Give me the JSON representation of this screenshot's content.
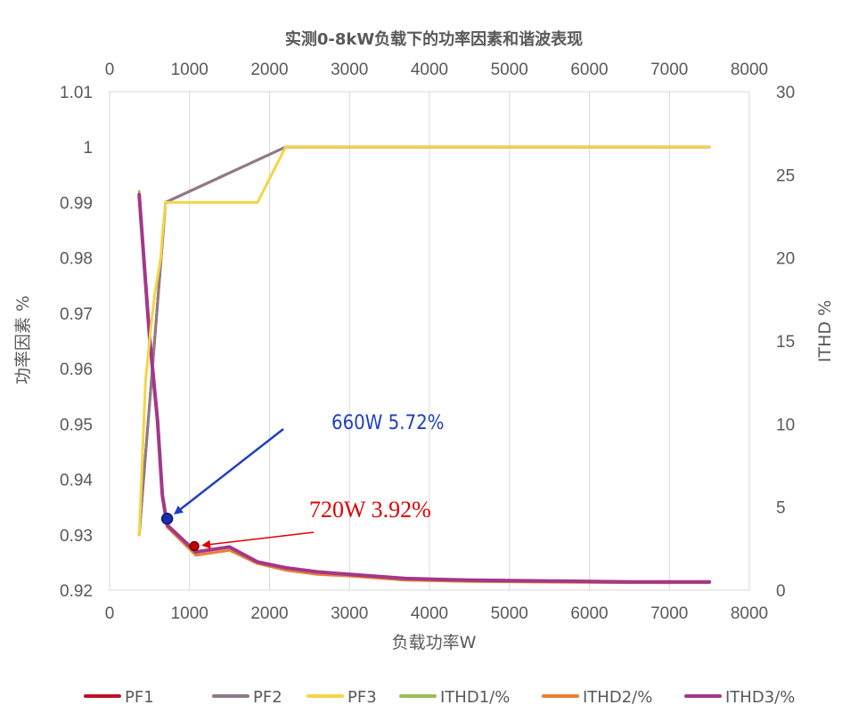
{
  "chart_data": {
    "type": "line",
    "title": "实测0-8kW负载下的功率因素和谐波表现",
    "xlabel": "负载功率W",
    "ylabel_left": "功率因素 %",
    "ylabel_right": "ITHD %",
    "x_range": [
      0,
      8000
    ],
    "x_ticks": [
      "0",
      "1000",
      "2000",
      "3000",
      "4000",
      "5000",
      "6000",
      "7000",
      "8000"
    ],
    "y_left_range": [
      0.92,
      1.01
    ],
    "y_left_ticks": [
      "0.92",
      "0.93",
      "0.94",
      "0.95",
      "0.96",
      "0.97",
      "0.98",
      "0.99",
      "1",
      "1.01"
    ],
    "y_right_range": [
      0,
      30
    ],
    "y_right_ticks": [
      "0",
      "5",
      "10",
      "15",
      "20",
      "25",
      "30"
    ],
    "grid": "vertical",
    "legend_position": "bottom",
    "series": [
      {
        "name": "PF1",
        "axis": "left",
        "color": "#c0102a",
        "x": [
          370,
          700,
          2200,
          7500
        ],
        "y": [
          0.93,
          0.99,
          1.0,
          1.0
        ]
      },
      {
        "name": "PF2",
        "axis": "left",
        "color": "#8c7b88",
        "x": [
          370,
          700,
          2200,
          7500
        ],
        "y": [
          0.93,
          0.99,
          1.0,
          1.0
        ]
      },
      {
        "name": "PF3",
        "axis": "left",
        "color": "#f5d547",
        "x": [
          370,
          450,
          520,
          570,
          640,
          660,
          700,
          1000,
          1500,
          1850,
          2200,
          3000,
          4000,
          5000,
          6000,
          7000,
          7500
        ],
        "y": [
          0.93,
          0.958,
          0.968,
          0.974,
          0.98,
          0.984,
          0.99,
          0.99,
          0.99,
          0.99,
          1.0,
          1.0,
          1.0,
          1.0,
          1.0,
          1.0,
          1.0
        ]
      },
      {
        "name": "ITHD1/%",
        "axis": "right",
        "color": "#9bbb59",
        "x": [
          370,
          500,
          600,
          660,
          720,
          1080,
          1500,
          1850,
          2200,
          2600,
          3000,
          3700,
          4500,
          5500,
          6500,
          7500
        ],
        "y": [
          24.0,
          15.2,
          10.2,
          5.72,
          3.92,
          2.3,
          2.6,
          1.7,
          1.35,
          1.1,
          0.95,
          0.7,
          0.6,
          0.55,
          0.5,
          0.5
        ]
      },
      {
        "name": "ITHD2/%",
        "axis": "right",
        "color": "#ed7d31",
        "x": [
          370,
          500,
          600,
          660,
          720,
          1080,
          1500,
          1850,
          2200,
          2600,
          3000,
          3700,
          4500,
          5500,
          6500,
          7500
        ],
        "y": [
          23.6,
          15.0,
          10.0,
          5.6,
          3.8,
          2.1,
          2.4,
          1.6,
          1.2,
          0.95,
          0.85,
          0.6,
          0.52,
          0.48,
          0.45,
          0.45
        ]
      },
      {
        "name": "ITHD3/%",
        "axis": "right",
        "color": "#a3378a",
        "x": [
          370,
          500,
          600,
          660,
          720,
          1080,
          1500,
          1850,
          2200,
          2600,
          3000,
          3700,
          4500,
          5500,
          6500,
          7500
        ],
        "y": [
          23.8,
          15.2,
          10.2,
          5.72,
          3.92,
          2.3,
          2.6,
          1.7,
          1.35,
          1.1,
          0.95,
          0.7,
          0.6,
          0.55,
          0.5,
          0.5
        ]
      }
    ],
    "annotations": [
      {
        "text": "660W 5.72%",
        "color": "#1f3fbf",
        "point_x": 720,
        "point_y_right": 4.3
      },
      {
        "text": "720W 3.92%",
        "color": "#e00000",
        "point_x": 1060,
        "point_y_right": 2.65
      }
    ]
  }
}
